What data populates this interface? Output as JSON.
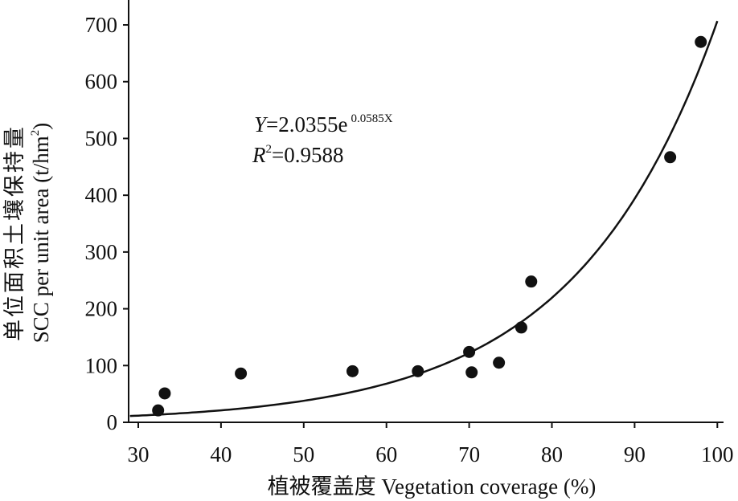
{
  "chart_data": {
    "type": "scatter",
    "title": "",
    "xlabel": "植被覆盖度 Vegetation coverage (%)",
    "ylabel_cn": "单位面积土壤保持量",
    "ylabel_en": "SCC per unit area (t/hm",
    "ylabel_sup": "2",
    "ylabel_end": ")",
    "xlim": [
      29,
      100
    ],
    "ylim": [
      0,
      744
    ],
    "xticks": [
      30,
      40,
      50,
      60,
      70,
      80,
      90,
      100
    ],
    "yticks": [
      0,
      100,
      200,
      300,
      400,
      500,
      600,
      700
    ],
    "grid": false,
    "points": [
      {
        "x": 32.4,
        "y": 21
      },
      {
        "x": 33.2,
        "y": 51
      },
      {
        "x": 42.4,
        "y": 86
      },
      {
        "x": 55.9,
        "y": 90
      },
      {
        "x": 63.8,
        "y": 90
      },
      {
        "x": 70.0,
        "y": 124
      },
      {
        "x": 70.3,
        "y": 88
      },
      {
        "x": 73.6,
        "y": 105
      },
      {
        "x": 76.3,
        "y": 167
      },
      {
        "x": 77.5,
        "y": 248
      },
      {
        "x": 94.3,
        "y": 467
      },
      {
        "x": 98.0,
        "y": 670
      }
    ],
    "fit": {
      "type": "exponential",
      "a": 2.0355,
      "b": 0.0585,
      "x_range": [
        29,
        100
      ]
    },
    "annotations": {
      "eq_y": "Y",
      "eq_main": "=2.0355e",
      "eq_exp": "0.0585X",
      "r2_r": "R",
      "r2_sup": "2",
      "r2_val": "=0.9588"
    }
  }
}
